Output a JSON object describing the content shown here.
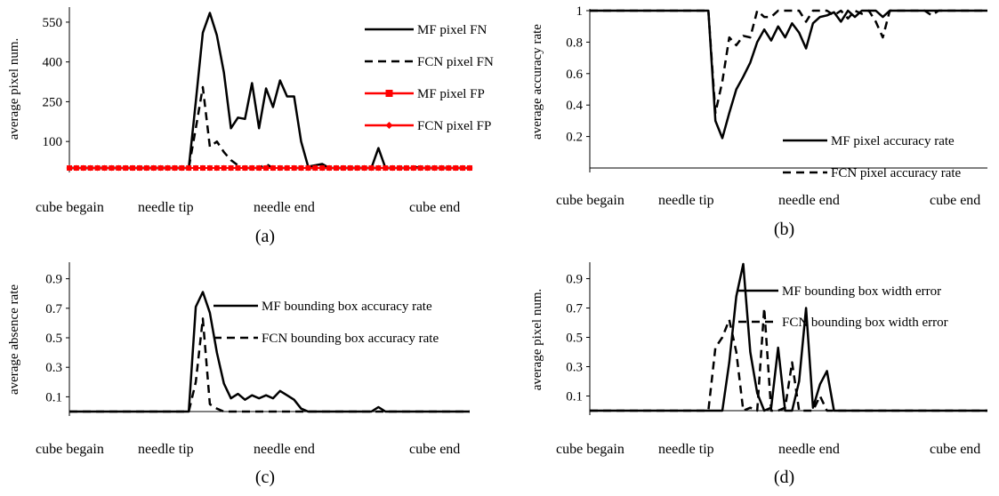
{
  "chart_data": [
    {
      "type": "line",
      "panel_label": "(a)",
      "ylabel": "average pixel num.",
      "ylim": [
        0,
        600
      ],
      "ytick_labels": [
        "100",
        "250",
        "400",
        "550"
      ],
      "x_category_labels": [
        "cube begain",
        "needle tip",
        "needle end",
        "cube end"
      ],
      "legend_placement": "top-right",
      "series": [
        {
          "name": "MF pixel FN",
          "color": "#000000",
          "dash": "solid",
          "markers": false,
          "values": [
            0,
            0,
            0,
            0,
            0,
            0,
            0,
            0,
            0,
            0,
            0,
            0,
            0,
            0,
            0,
            0,
            0,
            0,
            250,
            510,
            585,
            500,
            360,
            150,
            190,
            185,
            320,
            150,
            300,
            230,
            330,
            270,
            270,
            100,
            5,
            10,
            15,
            0,
            0,
            0,
            0,
            0,
            0,
            0,
            75,
            0,
            0,
            0,
            0,
            0,
            0,
            0,
            0,
            0,
            0,
            0,
            0,
            0
          ]
        },
        {
          "name": "FCN pixel FN",
          "color": "#000000",
          "dash": "dashed",
          "markers": false,
          "values": [
            0,
            0,
            0,
            0,
            0,
            0,
            0,
            0,
            0,
            0,
            0,
            0,
            0,
            0,
            0,
            0,
            0,
            0,
            150,
            305,
            80,
            100,
            60,
            30,
            10,
            0,
            0,
            0,
            15,
            0,
            0,
            0,
            0,
            0,
            0,
            0,
            0,
            0,
            0,
            0,
            0,
            0,
            0,
            0,
            0,
            0,
            0,
            0,
            0,
            5,
            0,
            0,
            0,
            0,
            0,
            0,
            0,
            0
          ]
        },
        {
          "name": "MF pixel FP",
          "color": "#ff0000",
          "dash": "solid",
          "markers": "square",
          "values": [
            0,
            0,
            0,
            0,
            0,
            0,
            0,
            0,
            0,
            0,
            0,
            0,
            0,
            0,
            0,
            0,
            0,
            0,
            0,
            0,
            0,
            0,
            0,
            0,
            0,
            0,
            0,
            0,
            0,
            0,
            0,
            0,
            0,
            0,
            0,
            0,
            0,
            0,
            0,
            0,
            0,
            0,
            0,
            0,
            0,
            0,
            0,
            0,
            0,
            0,
            0,
            0,
            0,
            0,
            0,
            0,
            0,
            0
          ]
        },
        {
          "name": "FCN pixel FP",
          "color": "#ff0000",
          "dash": "solid",
          "markers": "diamond",
          "values": [
            0,
            0,
            0,
            0,
            0,
            0,
            0,
            0,
            0,
            0,
            0,
            0,
            0,
            0,
            0,
            0,
            0,
            0,
            0,
            0,
            0,
            0,
            0,
            0,
            0,
            0,
            0,
            0,
            0,
            0,
            0,
            0,
            0,
            0,
            0,
            0,
            0,
            0,
            0,
            0,
            0,
            0,
            0,
            0,
            0,
            0,
            0,
            0,
            0,
            0,
            0,
            0,
            0,
            0,
            0,
            0,
            0,
            0
          ]
        }
      ]
    },
    {
      "type": "line",
      "panel_label": "(b)",
      "ylabel": "average accuracy rate",
      "ylim": [
        0,
        1
      ],
      "ytick_labels": [
        "0.2",
        "0.4",
        "0.6",
        "0.8",
        "1"
      ],
      "x_category_labels": [
        "cube begain",
        "needle tip",
        "needle end",
        "cube end"
      ],
      "legend_placement": "bottom-right",
      "series": [
        {
          "name": "MF pixel accuracy rate",
          "color": "#000000",
          "dash": "solid",
          "markers": false,
          "values": [
            1,
            1,
            1,
            1,
            1,
            1,
            1,
            1,
            1,
            1,
            1,
            1,
            1,
            1,
            1,
            1,
            1,
            1,
            0.3,
            0.19,
            0.35,
            0.5,
            0.58,
            0.67,
            0.8,
            0.88,
            0.81,
            0.9,
            0.83,
            0.92,
            0.86,
            0.76,
            0.92,
            0.96,
            0.97,
            0.99,
            0.93,
            1,
            0.96,
            1,
            1,
            1,
            0.96,
            1,
            1,
            1,
            1,
            1,
            1,
            1,
            1,
            1,
            1,
            1,
            1,
            1,
            1,
            1
          ]
        },
        {
          "name": "FCN pixel accuracy rate",
          "color": "#000000",
          "dash": "dashed",
          "markers": false,
          "values": [
            1,
            1,
            1,
            1,
            1,
            1,
            1,
            1,
            1,
            1,
            1,
            1,
            1,
            1,
            1,
            1,
            1,
            1,
            0.35,
            0.55,
            0.83,
            0.78,
            0.84,
            0.83,
            1,
            0.96,
            0.96,
            1,
            1,
            1,
            1,
            0.93,
            1,
            1,
            1,
            0.97,
            1,
            0.95,
            1,
            0.98,
            1,
            0.93,
            0.83,
            1,
            1,
            1,
            1,
            1,
            1,
            0.97,
            1,
            1,
            1,
            1,
            1,
            1,
            1,
            1
          ]
        }
      ]
    },
    {
      "type": "line",
      "panel_label": "(c)",
      "ylabel": "average absence rate",
      "ylim": [
        0,
        1
      ],
      "ytick_labels": [
        "0.1",
        "0.3",
        "0.5",
        "0.7",
        "0.9"
      ],
      "x_category_labels": [
        "cube begain",
        "needle tip",
        "needle end",
        "cube end"
      ],
      "legend_placement": "top-right",
      "series": [
        {
          "name": "MF bounding box accuracy rate",
          "color": "#000000",
          "dash": "solid",
          "markers": false,
          "values": [
            0,
            0,
            0,
            0,
            0,
            0,
            0,
            0,
            0,
            0,
            0,
            0,
            0,
            0,
            0,
            0,
            0,
            0,
            0.71,
            0.81,
            0.67,
            0.4,
            0.19,
            0.09,
            0.12,
            0.08,
            0.11,
            0.09,
            0.11,
            0.09,
            0.14,
            0.11,
            0.08,
            0.02,
            0,
            0,
            0,
            0,
            0,
            0,
            0,
            0,
            0,
            0,
            0.03,
            0,
            0,
            0,
            0,
            0,
            0,
            0,
            0,
            0,
            0,
            0,
            0,
            0
          ]
        },
        {
          "name": "FCN bounding box accuracy rate",
          "color": "#000000",
          "dash": "dashed",
          "markers": false,
          "values": [
            0,
            0,
            0,
            0,
            0,
            0,
            0,
            0,
            0,
            0,
            0,
            0,
            0,
            0,
            0,
            0,
            0,
            0,
            0.2,
            0.63,
            0.05,
            0.02,
            0,
            0,
            0,
            0,
            0,
            0,
            0,
            0,
            0,
            0,
            0,
            0,
            0,
            0,
            0,
            0,
            0,
            0,
            0,
            0,
            0,
            0,
            0,
            0,
            0,
            0,
            0,
            0,
            0,
            0,
            0,
            0,
            0,
            0,
            0,
            0
          ]
        }
      ]
    },
    {
      "type": "line",
      "panel_label": "(d)",
      "ylabel": "average pixel num.",
      "ylim": [
        0,
        1
      ],
      "ytick_labels": [
        "0.1",
        "0.3",
        "0.5",
        "0.7",
        "0.9"
      ],
      "x_category_labels": [
        "cube begain",
        "needle tip",
        "needle end",
        "cube end"
      ],
      "legend_placement": "top-right",
      "series": [
        {
          "name": "MF bounding box width error",
          "color": "#000000",
          "dash": "solid",
          "markers": false,
          "values": [
            0,
            0,
            0,
            0,
            0,
            0,
            0,
            0,
            0,
            0,
            0,
            0,
            0,
            0,
            0,
            0,
            0,
            0,
            0,
            0,
            0.33,
            0.78,
            1,
            0.4,
            0.12,
            0,
            0.02,
            0.43,
            0,
            0,
            0.2,
            0.7,
            0.02,
            0.18,
            0.27,
            0,
            0,
            0,
            0,
            0,
            0,
            0,
            0,
            0,
            0,
            0,
            0,
            0,
            0,
            0,
            0,
            0,
            0,
            0,
            0,
            0,
            0,
            0
          ]
        },
        {
          "name": "FCN bounding box width error",
          "color": "#000000",
          "dash": "dashed",
          "markers": false,
          "values": [
            0,
            0,
            0,
            0,
            0,
            0,
            0,
            0,
            0,
            0,
            0,
            0,
            0,
            0,
            0,
            0,
            0,
            0,
            0.43,
            0.5,
            0.62,
            0.4,
            0,
            0.02,
            0,
            0.7,
            0,
            0,
            0.02,
            0.33,
            0,
            0,
            0,
            0.1,
            0,
            0,
            0,
            0,
            0,
            0,
            0,
            0,
            0,
            0,
            0,
            0,
            0,
            0,
            0,
            0,
            0,
            0,
            0,
            0,
            0,
            0,
            0,
            0
          ]
        }
      ]
    }
  ]
}
